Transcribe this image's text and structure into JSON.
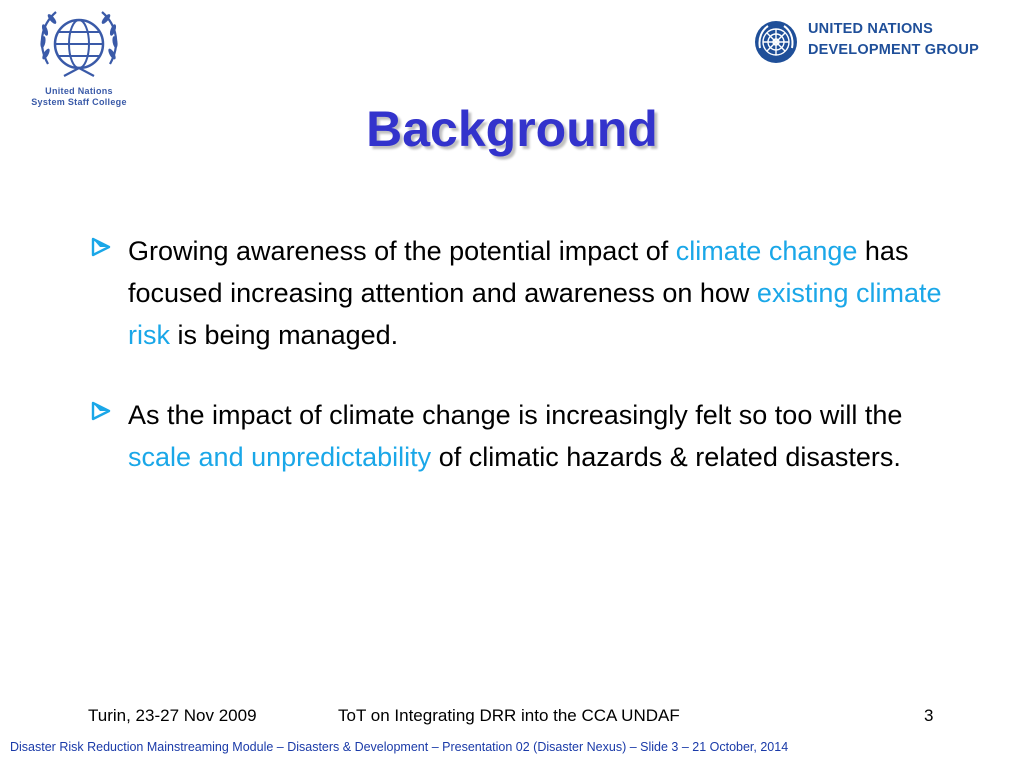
{
  "logos": {
    "left": {
      "line1": "United Nations",
      "line2": "System Staff College"
    },
    "right": {
      "line1": "UNITED NATIONS",
      "line2": "DEVELOPMENT GROUP"
    }
  },
  "title": "Background",
  "bullets": [
    {
      "parts": [
        "Growing awareness of the potential impact of ",
        "climate change",
        " has focused increasing attention and awareness on how ",
        "existing climate risk",
        " is being managed."
      ]
    },
    {
      "parts": [
        "As the impact of climate change is increasingly felt so too will the ",
        "scale and unpredictability",
        " of climatic hazards & related disasters."
      ]
    }
  ],
  "footer": {
    "left": "Turin, 23-27 Nov 2009",
    "center": "ToT on Integrating DRR into the CCA UNDAF",
    "page_number": "3",
    "bottom": "Disaster Risk Reduction Mainstreaming Module – Disasters & Development – Presentation 02 (Disaster Nexus) – Slide 3 – 21 October, 2014"
  },
  "colors": {
    "title": "#3333cc",
    "highlight": "#1aa7e8",
    "bullet_marker": "#1aa7e8",
    "bottom_line": "#1a3aa8"
  },
  "icons": {
    "bullet": "arrow-bullet-icon",
    "left_logo": "un-emblem-icon",
    "right_logo": "un-emblem-icon"
  }
}
